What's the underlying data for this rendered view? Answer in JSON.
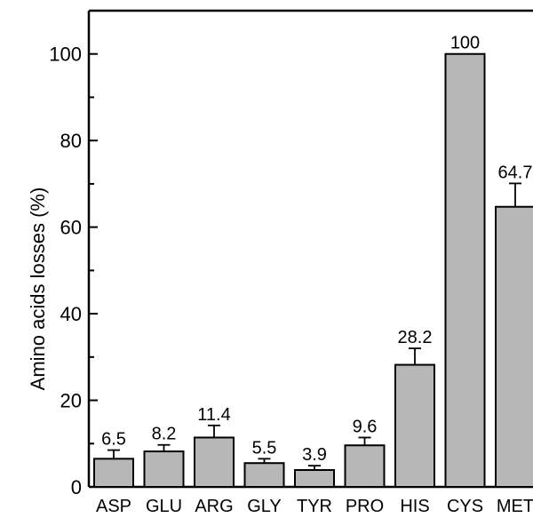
{
  "chart_data": {
    "type": "bar",
    "title": "",
    "xlabel": "",
    "ylabel": "Amino acids losses (%)",
    "ylim": [
      0,
      110
    ],
    "yticks": [
      0,
      20,
      40,
      60,
      80,
      100
    ],
    "grid": false,
    "legend": "none",
    "categories": [
      "ASP",
      "GLU",
      "ARG",
      "GLY",
      "TYR",
      "PRO",
      "HIS",
      "CYS",
      "MET"
    ],
    "values": [
      6.5,
      8.2,
      11.4,
      5.5,
      3.9,
      9.6,
      28.2,
      100,
      64.7
    ],
    "errors": [
      2,
      1.5,
      2.8,
      1,
      1,
      1.8,
      3.8,
      0,
      5.4
    ],
    "data_labels": [
      "6.5",
      "8.2",
      "11.4",
      "5.5",
      "3.9",
      "9.6",
      "28.2",
      "100",
      "64.7"
    ],
    "colors": {
      "bar": "#b7b7b7",
      "outline": "#000000"
    }
  }
}
